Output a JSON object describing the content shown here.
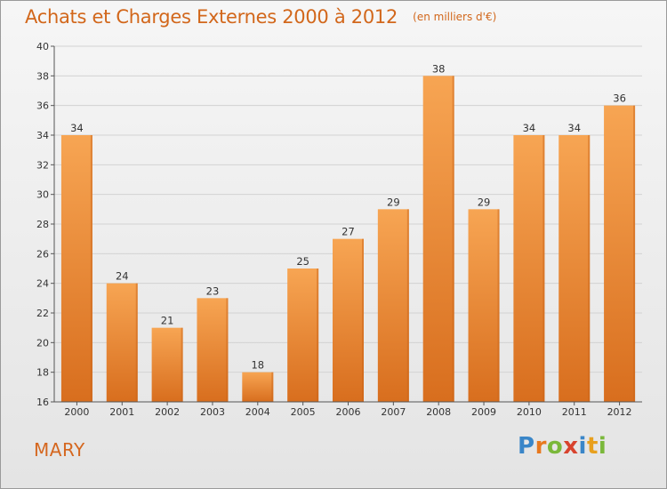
{
  "header": {
    "title": "Achats et Charges Externes 2000 à 2012",
    "unit": "(en milliers d'€)"
  },
  "footer": {
    "commune": "MARY",
    "logo_text": "Proxiti"
  },
  "colors": {
    "title": "#d2671b",
    "bar_light": "#f7a553",
    "bar_dark": "#d86e1e",
    "axis": "#555555"
  },
  "chart_data": {
    "type": "bar",
    "title": "Achats et Charges Externes 2000 à 2012",
    "subtitle": "(en milliers d'€)",
    "categories": [
      "2000",
      "2001",
      "2002",
      "2003",
      "2004",
      "2005",
      "2006",
      "2007",
      "2008",
      "2009",
      "2010",
      "2011",
      "2012"
    ],
    "values": [
      34,
      24,
      21,
      23,
      18,
      25,
      27,
      29,
      38,
      29,
      34,
      34,
      36
    ],
    "ylim": [
      16,
      40
    ],
    "yticks": [
      16,
      18,
      20,
      22,
      24,
      26,
      28,
      30,
      32,
      34,
      36,
      38,
      40
    ],
    "grid": true,
    "xlabel": "",
    "ylabel": ""
  }
}
